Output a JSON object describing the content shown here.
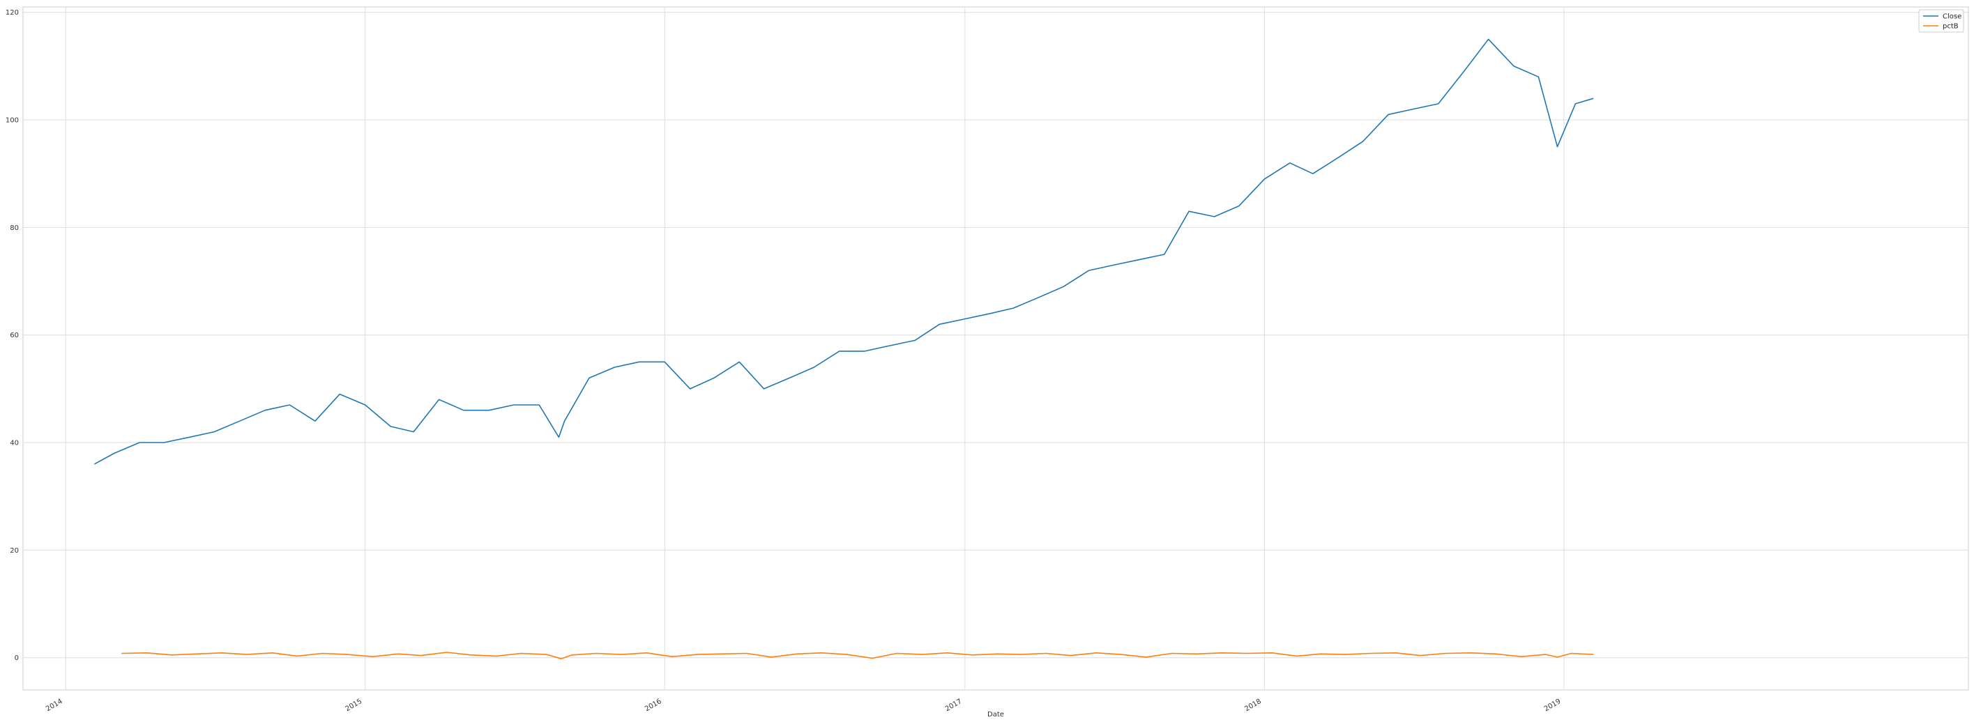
{
  "chart_data": {
    "type": "line",
    "title": "",
    "xlabel": "Date",
    "ylabel": "",
    "xlim": [
      "2013-11-10",
      "2020-05-08"
    ],
    "ylim": [
      -6,
      121
    ],
    "x_ticks": [
      "2014-01-01",
      "2015-01-01",
      "2016-01-01",
      "2017-01-01",
      "2018-01-01",
      "2019-01-01"
    ],
    "x_tick_labels": [
      "2014",
      "2015",
      "2016",
      "2017",
      "2018",
      "2019"
    ],
    "y_ticks": [
      0,
      20,
      40,
      60,
      80,
      100,
      120
    ],
    "y_tick_labels": [
      "0",
      "20",
      "40",
      "60",
      "80",
      "100",
      "120"
    ],
    "grid": true,
    "legend": "top-right",
    "series": [
      {
        "name": "Close",
        "color": "#1f77b4",
        "x": [
          "2014-02-05",
          "2014-03-01",
          "2014-04-01",
          "2014-05-01",
          "2014-06-01",
          "2014-07-01",
          "2014-08-01",
          "2014-09-01",
          "2014-10-01",
          "2014-11-01",
          "2014-12-01",
          "2015-01-01",
          "2015-02-01",
          "2015-03-01",
          "2015-04-01",
          "2015-05-01",
          "2015-06-01",
          "2015-07-01",
          "2015-08-01",
          "2015-08-25",
          "2015-09-01",
          "2015-10-01",
          "2015-11-01",
          "2015-12-01",
          "2016-01-01",
          "2016-02-01",
          "2016-03-01",
          "2016-04-01",
          "2016-05-01",
          "2016-06-01",
          "2016-07-01",
          "2016-08-01",
          "2016-09-01",
          "2016-10-01",
          "2016-11-01",
          "2016-12-01",
          "2017-01-01",
          "2017-02-01",
          "2017-03-01",
          "2017-04-01",
          "2017-05-01",
          "2017-06-01",
          "2017-07-01",
          "2017-08-01",
          "2017-09-01",
          "2017-10-01",
          "2017-11-01",
          "2017-12-01",
          "2018-01-01",
          "2018-02-01",
          "2018-03-01",
          "2018-04-01",
          "2018-05-01",
          "2018-06-01",
          "2018-07-01",
          "2018-08-01",
          "2018-09-01",
          "2018-10-01",
          "2018-11-01",
          "2018-12-01",
          "2018-12-24",
          "2019-01-15",
          "2019-02-06"
        ],
        "values": [
          36,
          38,
          40,
          40,
          41,
          42,
          44,
          46,
          47,
          44,
          49,
          47,
          43,
          42,
          48,
          46,
          46,
          47,
          47,
          41,
          44,
          52,
          54,
          55,
          55,
          50,
          52,
          55,
          50,
          52,
          54,
          57,
          57,
          58,
          59,
          62,
          63,
          64,
          65,
          67,
          69,
          72,
          73,
          74,
          75,
          83,
          82,
          84,
          89,
          92,
          90,
          93,
          96,
          101,
          102,
          103,
          109,
          115,
          110,
          108,
          95,
          103,
          104
        ]
      },
      {
        "name": "pctB",
        "color": "#ff7f0e",
        "x": [
          "2014-03-10",
          "2014-04-10",
          "2014-05-10",
          "2014-06-10",
          "2014-07-10",
          "2014-08-10",
          "2014-09-10",
          "2014-10-10",
          "2014-11-10",
          "2014-12-10",
          "2015-01-10",
          "2015-02-10",
          "2015-03-10",
          "2015-04-10",
          "2015-05-10",
          "2015-06-10",
          "2015-07-10",
          "2015-08-10",
          "2015-08-28",
          "2015-09-10",
          "2015-10-10",
          "2015-11-10",
          "2015-12-10",
          "2016-01-10",
          "2016-02-10",
          "2016-03-10",
          "2016-04-10",
          "2016-05-10",
          "2016-06-10",
          "2016-07-10",
          "2016-08-10",
          "2016-09-10",
          "2016-10-10",
          "2016-11-10",
          "2016-12-10",
          "2017-01-10",
          "2017-02-10",
          "2017-03-10",
          "2017-04-10",
          "2017-05-10",
          "2017-06-10",
          "2017-07-10",
          "2017-08-10",
          "2017-09-10",
          "2017-10-10",
          "2017-11-10",
          "2017-12-10",
          "2018-01-10",
          "2018-02-10",
          "2018-03-10",
          "2018-04-10",
          "2018-05-10",
          "2018-06-10",
          "2018-07-10",
          "2018-08-10",
          "2018-09-10",
          "2018-10-10",
          "2018-11-10",
          "2018-12-10",
          "2018-12-24",
          "2019-01-10",
          "2019-02-06"
        ],
        "values": [
          0.8,
          0.9,
          0.5,
          0.7,
          0.9,
          0.6,
          0.9,
          0.3,
          0.8,
          0.6,
          0.2,
          0.7,
          0.4,
          1.0,
          0.5,
          0.3,
          0.8,
          0.6,
          -0.2,
          0.5,
          0.8,
          0.6,
          0.9,
          0.2,
          0.6,
          0.7,
          0.8,
          0.1,
          0.7,
          0.9,
          0.6,
          -0.1,
          0.8,
          0.6,
          0.9,
          0.5,
          0.7,
          0.6,
          0.8,
          0.4,
          0.9,
          0.6,
          0.1,
          0.8,
          0.7,
          0.9,
          0.8,
          0.9,
          0.3,
          0.7,
          0.6,
          0.8,
          0.9,
          0.4,
          0.8,
          0.9,
          0.7,
          0.2,
          0.6,
          0.1,
          0.8,
          0.6
        ]
      }
    ]
  }
}
